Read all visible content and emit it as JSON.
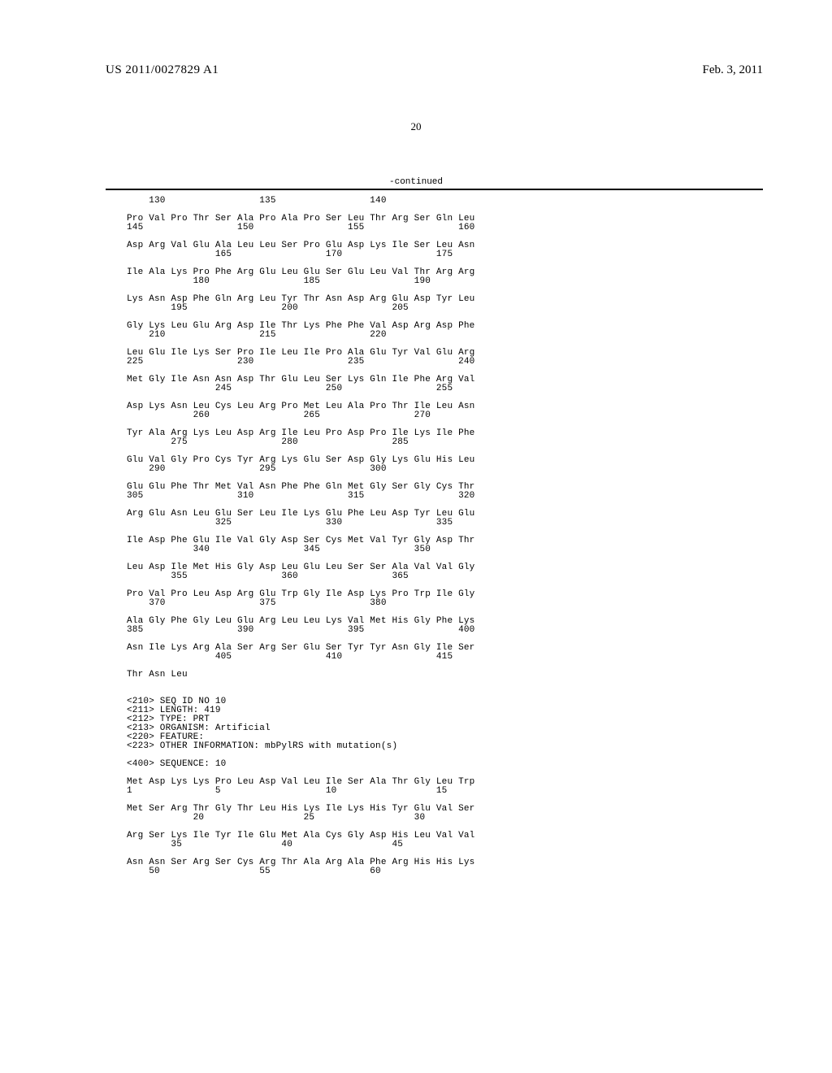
{
  "header": {
    "publication_id": "US 2011/0027829 A1",
    "date": "Feb. 3, 2011"
  },
  "page_number": "20",
  "continued_label": "-continued",
  "sequence_text": "    130                 135                 140\n\nPro Val Pro Thr Ser Ala Pro Ala Pro Ser Leu Thr Arg Ser Gln Leu\n145                 150                 155                 160\n\nAsp Arg Val Glu Ala Leu Leu Ser Pro Glu Asp Lys Ile Ser Leu Asn\n                165                 170                 175\n\nIle Ala Lys Pro Phe Arg Glu Leu Glu Ser Glu Leu Val Thr Arg Arg\n            180                 185                 190\n\nLys Asn Asp Phe Gln Arg Leu Tyr Thr Asn Asp Arg Glu Asp Tyr Leu\n        195                 200                 205\n\nGly Lys Leu Glu Arg Asp Ile Thr Lys Phe Phe Val Asp Arg Asp Phe\n    210                 215                 220\n\nLeu Glu Ile Lys Ser Pro Ile Leu Ile Pro Ala Glu Tyr Val Glu Arg\n225                 230                 235                 240\n\nMet Gly Ile Asn Asn Asp Thr Glu Leu Ser Lys Gln Ile Phe Arg Val\n                245                 250                 255\n\nAsp Lys Asn Leu Cys Leu Arg Pro Met Leu Ala Pro Thr Ile Leu Asn\n            260                 265                 270\n\nTyr Ala Arg Lys Leu Asp Arg Ile Leu Pro Asp Pro Ile Lys Ile Phe\n        275                 280                 285\n\nGlu Val Gly Pro Cys Tyr Arg Lys Glu Ser Asp Gly Lys Glu His Leu\n    290                 295                 300\n\nGlu Glu Phe Thr Met Val Asn Phe Phe Gln Met Gly Ser Gly Cys Thr\n305                 310                 315                 320\n\nArg Glu Asn Leu Glu Ser Leu Ile Lys Glu Phe Leu Asp Tyr Leu Glu\n                325                 330                 335\n\nIle Asp Phe Glu Ile Val Gly Asp Ser Cys Met Val Tyr Gly Asp Thr\n            340                 345                 350\n\nLeu Asp Ile Met His Gly Asp Leu Glu Leu Ser Ser Ala Val Val Gly\n        355                 360                 365\n\nPro Val Pro Leu Asp Arg Glu Trp Gly Ile Asp Lys Pro Trp Ile Gly\n    370                 375                 380\n\nAla Gly Phe Gly Leu Glu Arg Leu Leu Lys Val Met His Gly Phe Lys\n385                 390                 395                 400\n\nAsn Ile Lys Arg Ala Ser Arg Ser Glu Ser Tyr Tyr Asn Gly Ile Ser\n                405                 410                 415\n\nThr Asn Leu\n\n\n<210> SEQ ID NO 10\n<211> LENGTH: 419\n<212> TYPE: PRT\n<213> ORGANISM: Artificial\n<220> FEATURE:\n<223> OTHER INFORMATION: mbPylRS with mutation(s)\n\n<400> SEQUENCE: 10\n\nMet Asp Lys Lys Pro Leu Asp Val Leu Ile Ser Ala Thr Gly Leu Trp\n1               5                   10                  15\n\nMet Ser Arg Thr Gly Thr Leu His Lys Ile Lys His Tyr Glu Val Ser\n            20                  25                  30\n\nArg Ser Lys Ile Tyr Ile Glu Met Ala Cys Gly Asp His Leu Val Val\n        35                  40                  45\n\nAsn Asn Ser Arg Ser Cys Arg Thr Ala Arg Ala Phe Arg His His Lys\n    50                  55                  60"
}
